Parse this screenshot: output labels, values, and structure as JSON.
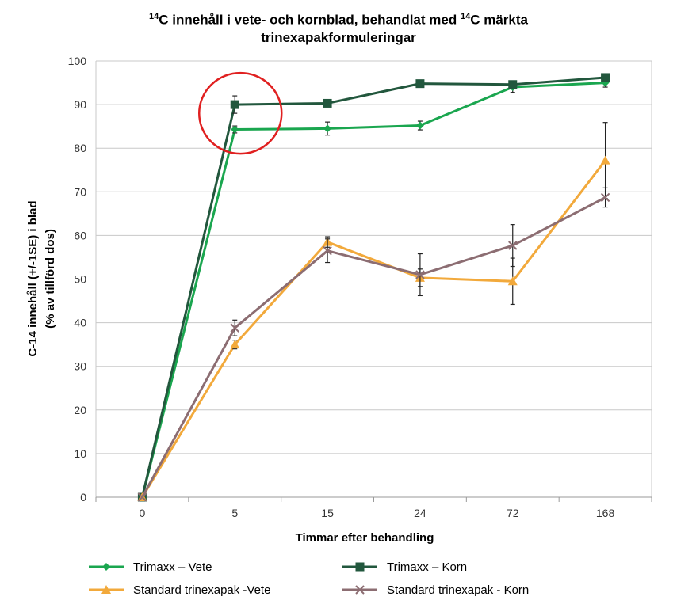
{
  "chart_data": {
    "type": "line",
    "title_line1_parts": [
      "14",
      "C innehåll i vete- och kornblad, behandlat med ",
      "14",
      "C märkta"
    ],
    "title_line2": "trinexapakformuleringar",
    "xlabel": "Timmar efter behandling",
    "ylabel_line1": "C-14 innehåll (+/-1SE) i blad",
    "ylabel_line2": "(% av tillförd dos)",
    "categories": [
      "0",
      "5",
      "15",
      "24",
      "72",
      "168"
    ],
    "ylim": [
      0,
      100
    ],
    "yticks": [
      0,
      10,
      20,
      30,
      40,
      50,
      60,
      70,
      80,
      90,
      100
    ],
    "grid": "horizontal",
    "series": [
      {
        "name": "Trimaxx – Vete",
        "color": "#1aa64f",
        "marker": "diamond",
        "values": [
          0,
          84.3,
          84.5,
          85.2,
          94.0,
          95.0
        ],
        "errors": [
          0,
          0.8,
          1.5,
          1.0,
          1.2,
          1.0
        ]
      },
      {
        "name": "Trimaxx – Korn",
        "color": "#22573d",
        "marker": "square",
        "values": [
          0,
          90.0,
          90.3,
          94.8,
          94.6,
          96.2
        ],
        "errors": [
          0,
          2.0,
          0.8,
          0.6,
          0.8,
          0.6
        ]
      },
      {
        "name": "Standard trinexapak -Vete",
        "color": "#f2a93b",
        "marker": "triangle",
        "values": [
          0,
          35.0,
          58.5,
          50.3,
          49.5,
          77.2
        ],
        "errors": [
          0,
          1.0,
          1.2,
          2.0,
          5.3,
          8.7
        ]
      },
      {
        "name": "Standard trinexapak - Korn",
        "color": "#8c6d72",
        "marker": "x",
        "values": [
          0,
          38.8,
          56.5,
          51.0,
          57.7,
          68.7
        ],
        "errors": [
          0,
          1.8,
          2.7,
          4.8,
          4.8,
          2.2
        ]
      }
    ],
    "legend": "bottom",
    "annotation": {
      "type": "circle",
      "color": "#e02020",
      "category": "5"
    }
  }
}
